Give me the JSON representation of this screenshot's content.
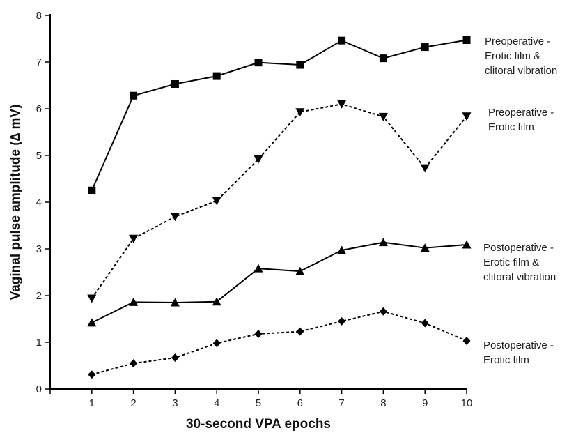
{
  "chart_data": {
    "type": "line",
    "xlabel": "30-second VPA epochs",
    "ylabel": "Vaginal pulse amplitude (∆ mV)",
    "x": [
      1,
      2,
      3,
      4,
      5,
      6,
      7,
      8,
      9,
      10
    ],
    "xlim": [
      0,
      10
    ],
    "ylim": [
      0,
      8
    ],
    "x_ticks": [
      "1",
      "2",
      "3",
      "4",
      "5",
      "6",
      "7",
      "8",
      "9",
      "10"
    ],
    "y_ticks": [
      "0",
      "1",
      "2",
      "3",
      "4",
      "5",
      "6",
      "7",
      "8"
    ],
    "grid": false,
    "legend_placement": "right (inline labels at series ends)",
    "series": [
      {
        "label_lines": [
          "Preoperative -",
          "Erotic film &",
          "clitoral vibration"
        ],
        "marker": "square",
        "line_style": "solid",
        "color": "#000000",
        "values": [
          4.25,
          6.28,
          6.53,
          6.7,
          6.99,
          6.94,
          7.46,
          7.08,
          7.32,
          7.47
        ]
      },
      {
        "label_lines": [
          "Preoperative -",
          "Erotic film"
        ],
        "marker": "triangle-down",
        "line_style": "dashed",
        "color": "#000000",
        "values": [
          1.94,
          3.22,
          3.69,
          4.03,
          4.92,
          5.93,
          6.1,
          5.83,
          4.73,
          5.84
        ]
      },
      {
        "label_lines": [
          "Postoperative -",
          "Erotic film &",
          "clitoral vibration"
        ],
        "marker": "triangle-up",
        "line_style": "solid",
        "color": "#000000",
        "values": [
          1.42,
          1.86,
          1.85,
          1.87,
          2.58,
          2.52,
          2.97,
          3.14,
          3.02,
          3.09
        ]
      },
      {
        "label_lines": [
          "Postoperative -",
          "Erotic film"
        ],
        "marker": "diamond",
        "line_style": "dashed",
        "color": "#000000",
        "values": [
          0.31,
          0.55,
          0.67,
          0.98,
          1.18,
          1.23,
          1.45,
          1.66,
          1.41,
          1.03
        ]
      }
    ]
  }
}
